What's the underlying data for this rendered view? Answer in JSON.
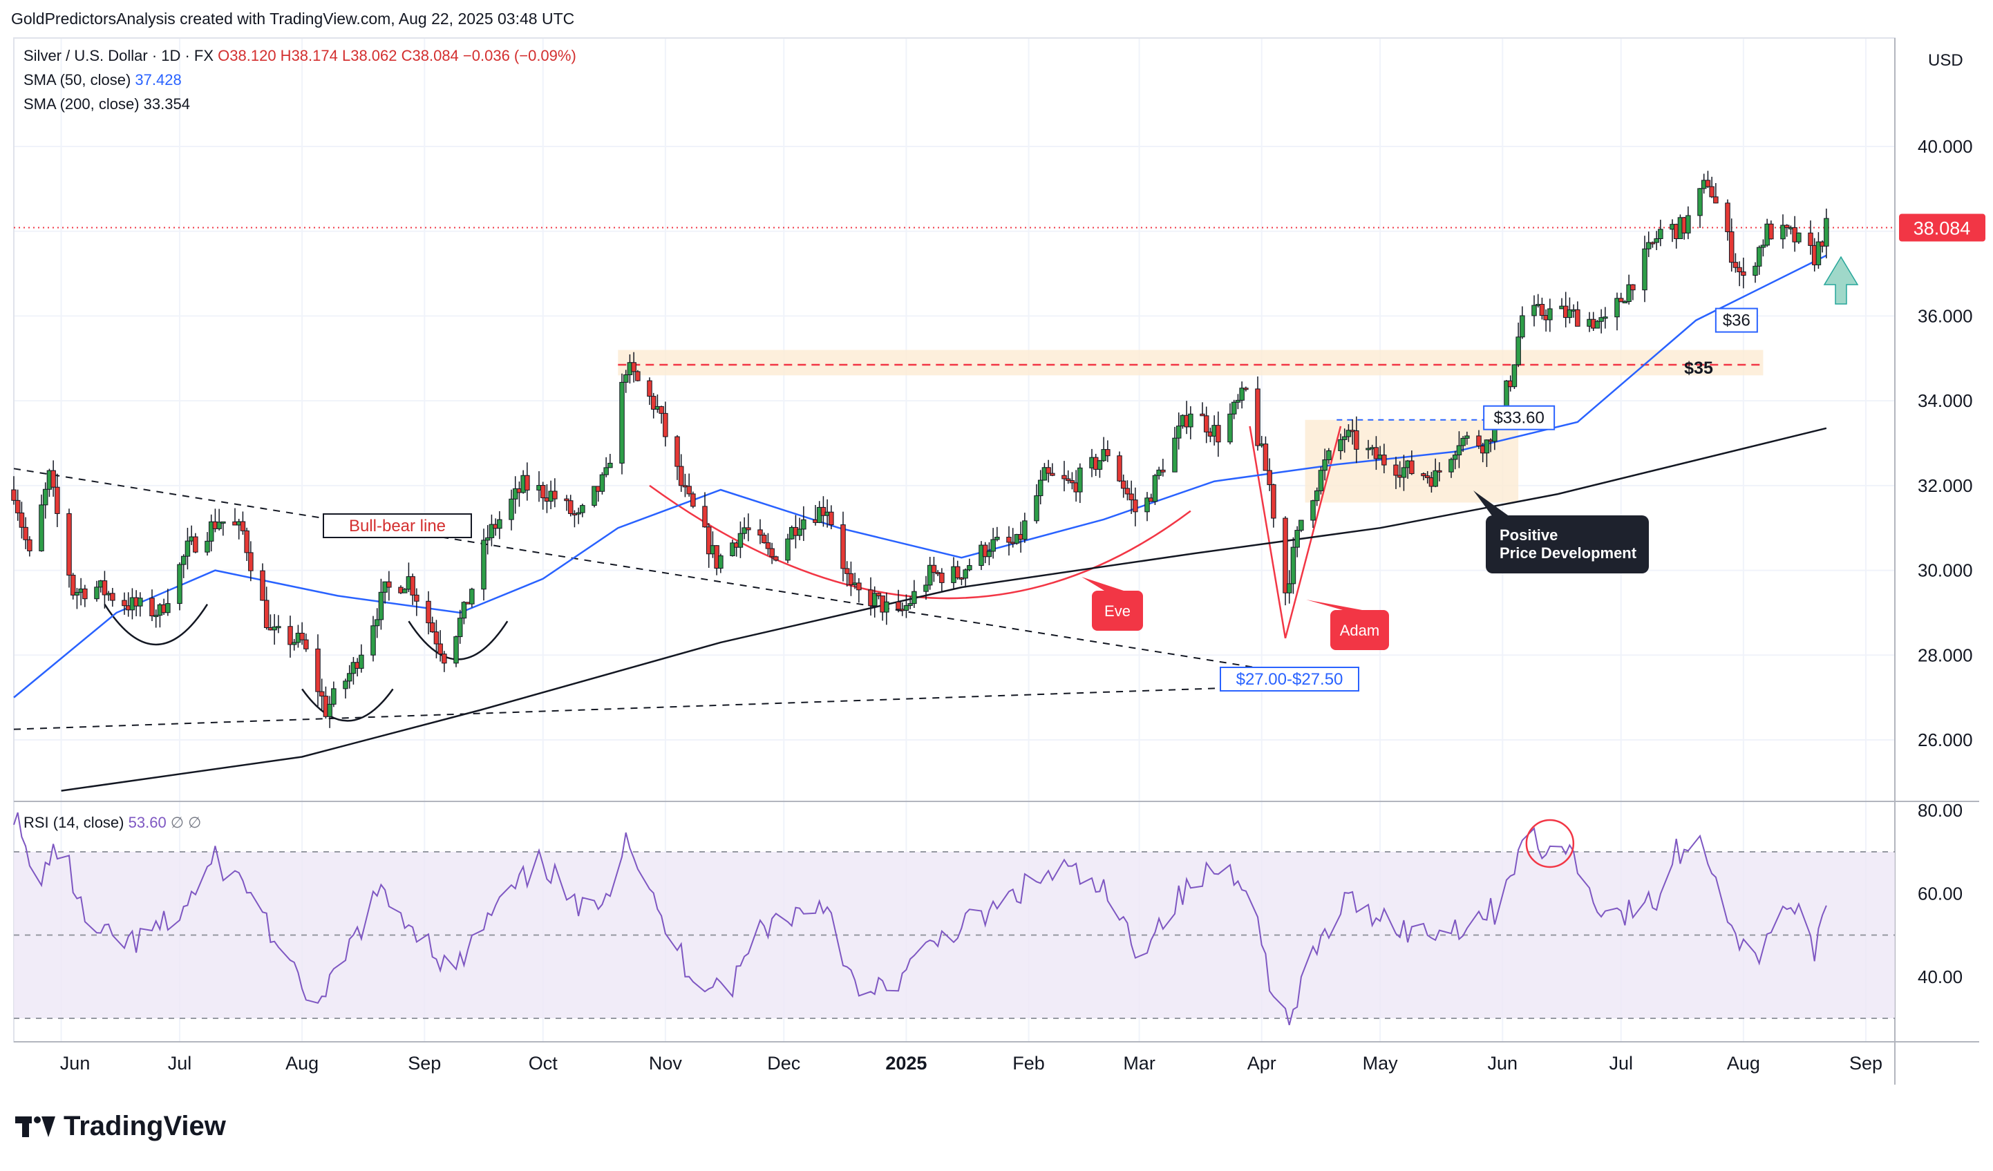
{
  "header": {
    "attribution": "GoldPredictorsAnalysis created with TradingView.com, Aug 22, 2025 03:48 UTC"
  },
  "legend": {
    "symbol": "Silver / U.S. Dollar · 1D · FX",
    "ohlc": "O38.120 H38.174 L38.062 C38.084 −0.036 (−0.09%)",
    "sma50_label": "SMA (50, close)",
    "sma50_value": "37.428",
    "sma200_label": "SMA (200, close)",
    "sma200_value": "33.354",
    "rsi_label": "RSI (14, close)",
    "rsi_value": "53.60",
    "rsi_extra": "∅ ∅"
  },
  "currency": "USD",
  "last_price_label": "38.084",
  "branding": "TradingView",
  "annotations": {
    "bull_bear_line": "Bull-bear line",
    "eve": "Eve",
    "adam": "Adam",
    "positive_line1": "Positive",
    "positive_line2": "Price Development",
    "level_35": "$35",
    "level_3360": "$33.60",
    "level_36": "$36",
    "level_27": "$27.00-$27.50"
  },
  "colors": {
    "up": "#26a69a",
    "up_body": "#2e9e48",
    "down": "#e53935",
    "sma50": "#2962ff",
    "sma200": "#131722",
    "rsi": "#7e57c2",
    "rsi_band": "#ede7f6",
    "resistance": "#f23645",
    "annotation_red": "#f23645"
  },
  "chart_data": [
    {
      "type": "candlestick",
      "title": "Silver / U.S. Dollar · 1D · FX",
      "y_axis_ticks": [
        "26.000",
        "28.000",
        "30.000",
        "32.000",
        "34.000",
        "36.000",
        "38.000",
        "40.000"
      ],
      "ylim": [
        24.5,
        42.0
      ],
      "x_axis_ticks": [
        "Jun",
        "Jul",
        "Aug",
        "Sep",
        "Oct",
        "Nov",
        "Dec",
        "2025",
        "Feb",
        "Mar",
        "Apr",
        "May",
        "Jun",
        "Jul",
        "Aug",
        "Sep"
      ],
      "x_range": [
        "2024-05-20",
        "2025-09-08"
      ],
      "grid": true,
      "close_path": [
        [
          "2024-05-20",
          31.9
        ],
        [
          "2024-05-24",
          30.3
        ],
        [
          "2024-05-29",
          32.2
        ],
        [
          "2024-06-04",
          29.5
        ],
        [
          "2024-06-10",
          29.6
        ],
        [
          "2024-06-18",
          29.2
        ],
        [
          "2024-06-26",
          29.0
        ],
        [
          "2024-07-03",
          30.5
        ],
        [
          "2024-07-11",
          31.2
        ],
        [
          "2024-07-17",
          30.9
        ],
        [
          "2024-07-24",
          28.5
        ],
        [
          "2024-08-01",
          28.3
        ],
        [
          "2024-08-07",
          26.7
        ],
        [
          "2024-08-14",
          27.7
        ],
        [
          "2024-08-22",
          29.5
        ],
        [
          "2024-08-28",
          29.8
        ],
        [
          "2024-09-06",
          28.0
        ],
        [
          "2024-09-11",
          29.0
        ],
        [
          "2024-09-17",
          30.8
        ],
        [
          "2024-09-26",
          32.0
        ],
        [
          "2024-10-03",
          31.8
        ],
        [
          "2024-10-10",
          31.2
        ],
        [
          "2024-10-17",
          32.2
        ],
        [
          "2024-10-22",
          34.8
        ],
        [
          "2024-10-30",
          33.8
        ],
        [
          "2024-11-05",
          32.0
        ],
        [
          "2024-11-14",
          30.2
        ],
        [
          "2024-11-21",
          31.0
        ],
        [
          "2024-11-28",
          30.3
        ],
        [
          "2024-12-05",
          31.2
        ],
        [
          "2024-12-12",
          31.5
        ],
        [
          "2024-12-18",
          29.5
        ],
        [
          "2024-12-24",
          29.3
        ],
        [
          "2024-12-30",
          28.9
        ],
        [
          "2025-01-07",
          29.9
        ],
        [
          "2025-01-14",
          29.9
        ],
        [
          "2025-01-22",
          30.6
        ],
        [
          "2025-01-29",
          30.6
        ],
        [
          "2025-02-05",
          32.2
        ],
        [
          "2025-02-12",
          32.0
        ],
        [
          "2025-02-21",
          32.8
        ],
        [
          "2025-03-01",
          31.2
        ],
        [
          "2025-03-07",
          32.5
        ],
        [
          "2025-03-14",
          33.8
        ],
        [
          "2025-03-21",
          33.2
        ],
        [
          "2025-03-28",
          34.2
        ],
        [
          "2025-04-03",
          32.0
        ],
        [
          "2025-04-07",
          29.5
        ],
        [
          "2025-04-11",
          31.2
        ],
        [
          "2025-04-17",
          32.5
        ],
        [
          "2025-04-22",
          33.2
        ],
        [
          "2025-04-29",
          32.7
        ],
        [
          "2025-05-07",
          32.4
        ],
        [
          "2025-05-15",
          32.2
        ],
        [
          "2025-05-21",
          33.1
        ],
        [
          "2025-05-28",
          33.0
        ],
        [
          "2025-06-03",
          34.5
        ],
        [
          "2025-06-06",
          36.0
        ],
        [
          "2025-06-13",
          36.1
        ],
        [
          "2025-06-20",
          36.0
        ],
        [
          "2025-06-27",
          35.8
        ],
        [
          "2025-07-03",
          36.7
        ],
        [
          "2025-07-11",
          38.0
        ],
        [
          "2025-07-17",
          38.1
        ],
        [
          "2025-07-23",
          39.2
        ],
        [
          "2025-07-29",
          37.5
        ],
        [
          "2025-08-01",
          36.8
        ],
        [
          "2025-08-07",
          38.0
        ],
        [
          "2025-08-13",
          37.9
        ],
        [
          "2025-08-19",
          37.4
        ],
        [
          "2025-08-22",
          38.084
        ]
      ],
      "sma50_path": [
        [
          "2024-05-20",
          27.0
        ],
        [
          "2024-06-15",
          29.0
        ],
        [
          "2024-07-10",
          30.0
        ],
        [
          "2024-08-10",
          29.4
        ],
        [
          "2024-09-10",
          29.0
        ],
        [
          "2024-10-01",
          29.8
        ],
        [
          "2024-10-20",
          31.0
        ],
        [
          "2024-11-15",
          31.9
        ],
        [
          "2024-12-15",
          31.0
        ],
        [
          "2025-01-15",
          30.3
        ],
        [
          "2025-02-20",
          31.2
        ],
        [
          "2025-03-20",
          32.1
        ],
        [
          "2025-04-20",
          32.5
        ],
        [
          "2025-05-20",
          32.8
        ],
        [
          "2025-06-20",
          33.5
        ],
        [
          "2025-07-20",
          35.9
        ],
        [
          "2025-08-22",
          37.428
        ]
      ],
      "sma200_path": [
        [
          "2024-06-01",
          24.8
        ],
        [
          "2024-08-01",
          25.6
        ],
        [
          "2024-09-15",
          26.7
        ],
        [
          "2024-11-15",
          28.3
        ],
        [
          "2025-01-15",
          29.6
        ],
        [
          "2025-03-15",
          30.4
        ],
        [
          "2025-05-01",
          31.0
        ],
        [
          "2025-06-15",
          31.8
        ],
        [
          "2025-08-22",
          33.354
        ]
      ],
      "levels": [
        {
          "label": "$35",
          "value": 34.8
        },
        {
          "label": "$33.60",
          "value": 33.55
        },
        {
          "label": "38.084",
          "value": 38.084
        }
      ],
      "annotations": [
        "Bull-bear line",
        "Eve",
        "Adam",
        "Positive Price Development",
        "$35",
        "$33.60",
        "$36",
        "$27.00-$27.50"
      ]
    },
    {
      "type": "line",
      "title": "RSI (14, close)",
      "y_axis_ticks": [
        "40.00",
        "60.00",
        "80.00"
      ],
      "ylim": [
        25,
        82
      ],
      "bands": [
        30,
        50,
        70
      ],
      "series": [
        {
          "name": "RSI (14, close)",
          "points": [
            [
              "2024-05-20",
              80
            ],
            [
              "2024-05-25",
              62
            ],
            [
              "2024-06-01",
              72
            ],
            [
              "2024-06-08",
              50
            ],
            [
              "2024-06-20",
              48
            ],
            [
              "2024-07-01",
              55
            ],
            [
              "2024-07-10",
              68
            ],
            [
              "2024-07-20",
              60
            ],
            [
              "2024-07-28",
              42
            ],
            [
              "2024-08-06",
              33
            ],
            [
              "2024-08-12",
              45
            ],
            [
              "2024-08-20",
              60
            ],
            [
              "2024-09-01",
              50
            ],
            [
              "2024-09-08",
              40
            ],
            [
              "2024-09-18",
              55
            ],
            [
              "2024-10-01",
              68
            ],
            [
              "2024-10-10",
              55
            ],
            [
              "2024-10-18",
              62
            ],
            [
              "2024-10-22",
              75
            ],
            [
              "2024-10-30",
              55
            ],
            [
              "2024-11-08",
              40
            ],
            [
              "2024-11-18",
              38
            ],
            [
              "2024-11-25",
              52
            ],
            [
              "2024-12-03",
              55
            ],
            [
              "2024-12-12",
              58
            ],
            [
              "2024-12-20",
              34
            ],
            [
              "2024-12-31",
              40
            ],
            [
              "2025-01-10",
              50
            ],
            [
              "2025-01-22",
              55
            ],
            [
              "2025-02-01",
              62
            ],
            [
              "2025-02-10",
              66
            ],
            [
              "2025-02-20",
              60
            ],
            [
              "2025-03-01",
              46
            ],
            [
              "2025-03-10",
              58
            ],
            [
              "2025-03-20",
              66
            ],
            [
              "2025-03-28",
              64
            ],
            [
              "2025-04-03",
              40
            ],
            [
              "2025-04-08",
              28
            ],
            [
              "2025-04-14",
              45
            ],
            [
              "2025-04-22",
              58
            ],
            [
              "2025-05-01",
              55
            ],
            [
              "2025-05-10",
              50
            ],
            [
              "2025-05-20",
              52
            ],
            [
              "2025-05-30",
              56
            ],
            [
              "2025-06-05",
              70
            ],
            [
              "2025-06-09",
              73
            ],
            [
              "2025-06-13",
              68
            ],
            [
              "2025-06-17",
              73
            ],
            [
              "2025-06-24",
              58
            ],
            [
              "2025-07-02",
              55
            ],
            [
              "2025-07-10",
              58
            ],
            [
              "2025-07-15",
              70
            ],
            [
              "2025-07-22",
              72
            ],
            [
              "2025-07-30",
              50
            ],
            [
              "2025-08-04",
              43
            ],
            [
              "2025-08-10",
              58
            ],
            [
              "2025-08-15",
              55
            ],
            [
              "2025-08-19",
              47
            ],
            [
              "2025-08-22",
              53.6
            ]
          ]
        }
      ]
    }
  ]
}
